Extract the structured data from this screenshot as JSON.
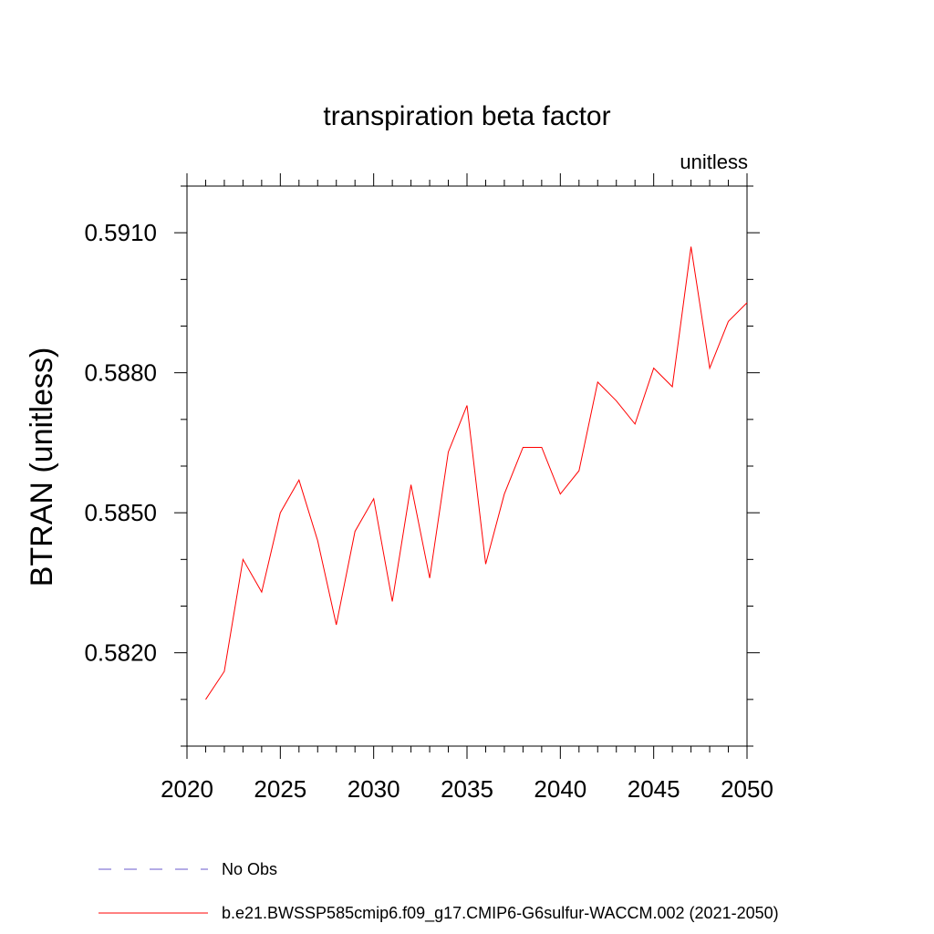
{
  "chart_data": {
    "type": "line",
    "title": "transpiration beta factor",
    "units_label": "unitless",
    "ylabel": "BTRAN  (unitless)",
    "xlabel": "",
    "xlim": [
      2020,
      2050
    ],
    "ylim": [
      0.58,
      0.592
    ],
    "x_ticks": [
      "2020",
      "2025",
      "2030",
      "2035",
      "2040",
      "2045",
      "2050"
    ],
    "y_ticks": [
      "0.5820",
      "0.5850",
      "0.5880",
      "0.5910"
    ],
    "grid": false,
    "legend_position": "bottom",
    "legend": [
      {
        "label": "No Obs",
        "color": "#6a5acd",
        "dash": "dashed"
      },
      {
        "label": "b.e21.BWSSP585cmip6.f09_g17.CMIP6-G6sulfur-WACCM.002 (2021-2050)",
        "color": "#ff0000",
        "dash": "solid"
      }
    ],
    "series": [
      {
        "color": "#ff0000",
        "x": [
          2021,
          2022,
          2023,
          2024,
          2025,
          2026,
          2027,
          2028,
          2029,
          2030,
          2031,
          2032,
          2033,
          2034,
          2035,
          2036,
          2037,
          2038,
          2039,
          2040,
          2041,
          2042,
          2043,
          2044,
          2045,
          2046,
          2047,
          2048,
          2049,
          2050
        ],
        "values": [
          0.581,
          0.5816,
          0.584,
          0.5833,
          0.585,
          0.5857,
          0.5844,
          0.5826,
          0.5846,
          0.5853,
          0.5831,
          0.5856,
          0.5836,
          0.5863,
          0.5873,
          0.5839,
          0.5854,
          0.5864,
          0.5864,
          0.5854,
          0.5859,
          0.5878,
          0.5874,
          0.5869,
          0.5881,
          0.5877,
          0.5907,
          0.5881,
          0.5891,
          0.5895
        ]
      }
    ]
  }
}
